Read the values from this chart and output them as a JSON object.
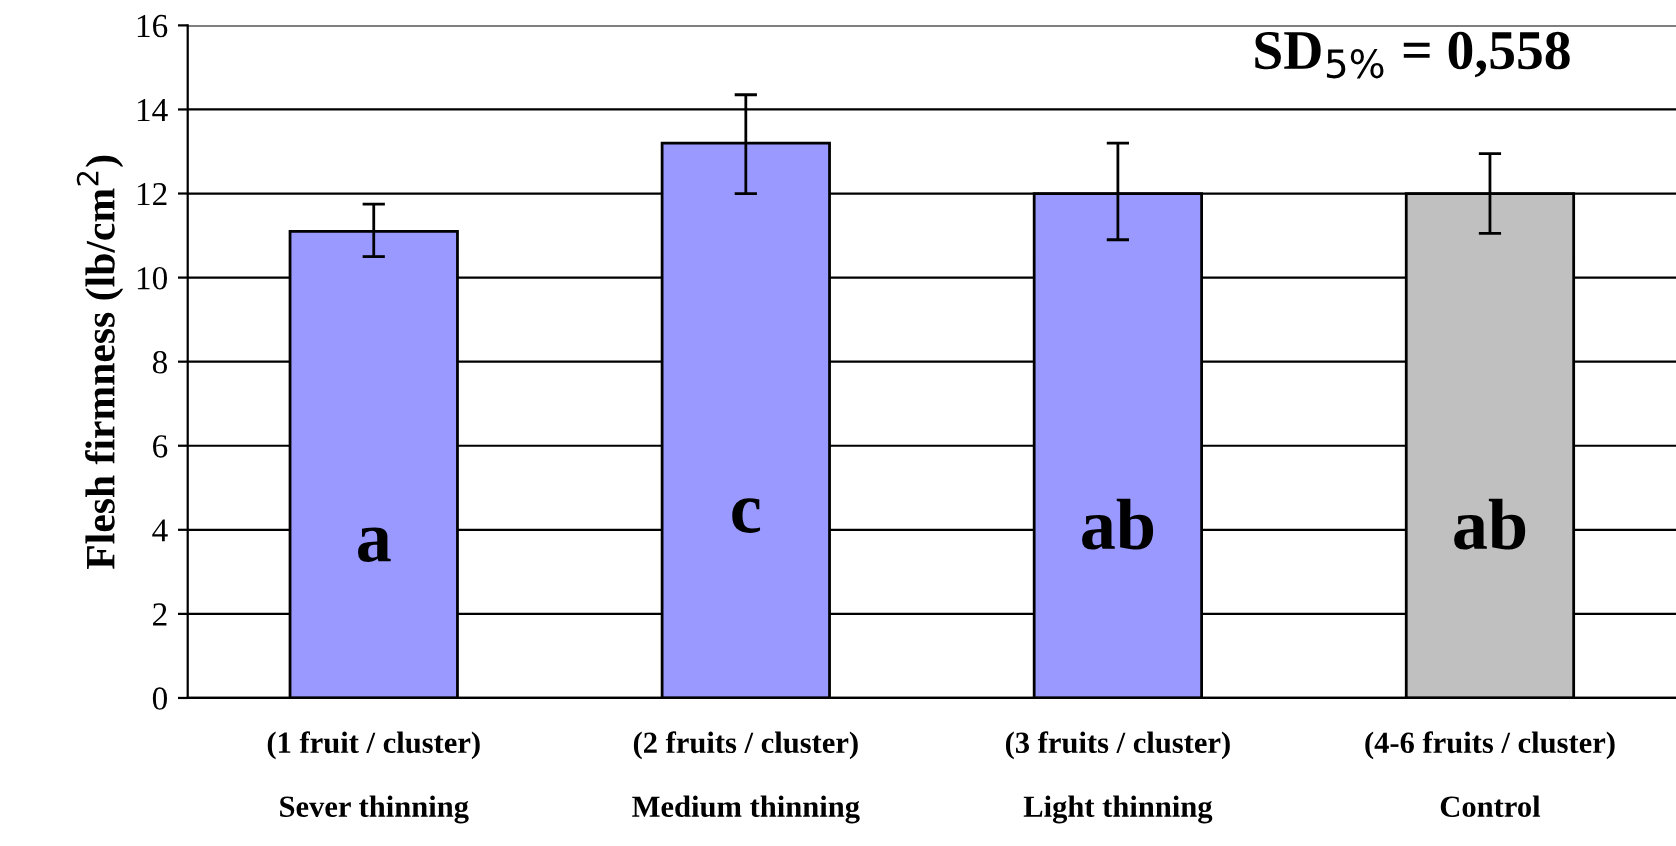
{
  "chart_data": {
    "type": "bar",
    "ylabel": "Flesh firmness (lb/cm$^{2}$)",
    "categories": [
      "(1 fruit / cluster)\n\nSever thinning",
      "(2 fruits / cluster)\n\nMedium thinning",
      "(3 fruits / cluster)\n\nLight thinning",
      "(4-6 fruits / cluster)\n\nControl"
    ],
    "values": [
      11.1,
      13.2,
      12.0,
      12.0
    ],
    "colors": [
      "#9999ff",
      "#9999ff",
      "#9999ff",
      "#c0c0c0"
    ],
    "errors": [
      [
        10.5,
        11.75
      ],
      [
        12.0,
        14.35
      ],
      [
        10.9,
        13.2
      ],
      [
        11.05,
        12.95
      ]
    ],
    "ylim": [
      0,
      16
    ],
    "yticks": [
      0,
      2,
      4,
      6,
      8,
      10,
      12,
      14,
      16
    ],
    "grid": "y",
    "value_labels": [
      "a",
      "c",
      "ab",
      "ab"
    ],
    "annotations": [
      "SD$_{5%}$ = 0,558"
    ]
  }
}
